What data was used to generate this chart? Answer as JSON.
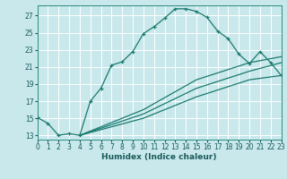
{
  "xlabel": "Humidex (Indice chaleur)",
  "bg_color": "#c8e8ec",
  "grid_color": "#ffffff",
  "line_color": "#1a7a6e",
  "xlim": [
    0,
    23
  ],
  "ylim": [
    12.5,
    28.2
  ],
  "xticks": [
    0,
    1,
    2,
    3,
    4,
    5,
    6,
    7,
    8,
    9,
    10,
    11,
    12,
    13,
    14,
    15,
    16,
    17,
    18,
    19,
    20,
    21,
    22,
    23
  ],
  "yticks": [
    13,
    15,
    17,
    19,
    21,
    23,
    25,
    27
  ],
  "curve_x": [
    0,
    1,
    2,
    3,
    4,
    5,
    6,
    7,
    8,
    9,
    10,
    11,
    12,
    13,
    14,
    15,
    16,
    17,
    18,
    19,
    20,
    21,
    22,
    23
  ],
  "curve_y": [
    15.1,
    14.4,
    13.0,
    13.2,
    13.0,
    17.0,
    18.5,
    21.2,
    21.6,
    22.8,
    24.9,
    25.7,
    26.7,
    27.8,
    27.8,
    27.5,
    26.8,
    25.2,
    24.3,
    22.5,
    21.4,
    22.8,
    21.5,
    20.0
  ],
  "line2_x": [
    4,
    10,
    15,
    20,
    23
  ],
  "line2_y": [
    13.0,
    16.0,
    19.5,
    21.5,
    22.2
  ],
  "line3_x": [
    4,
    10,
    15,
    20,
    23
  ],
  "line3_y": [
    13.0,
    15.5,
    18.5,
    20.5,
    21.5
  ],
  "line4_x": [
    4,
    10,
    15,
    20,
    23
  ],
  "line4_y": [
    13.0,
    15.0,
    17.5,
    19.5,
    20.0
  ]
}
